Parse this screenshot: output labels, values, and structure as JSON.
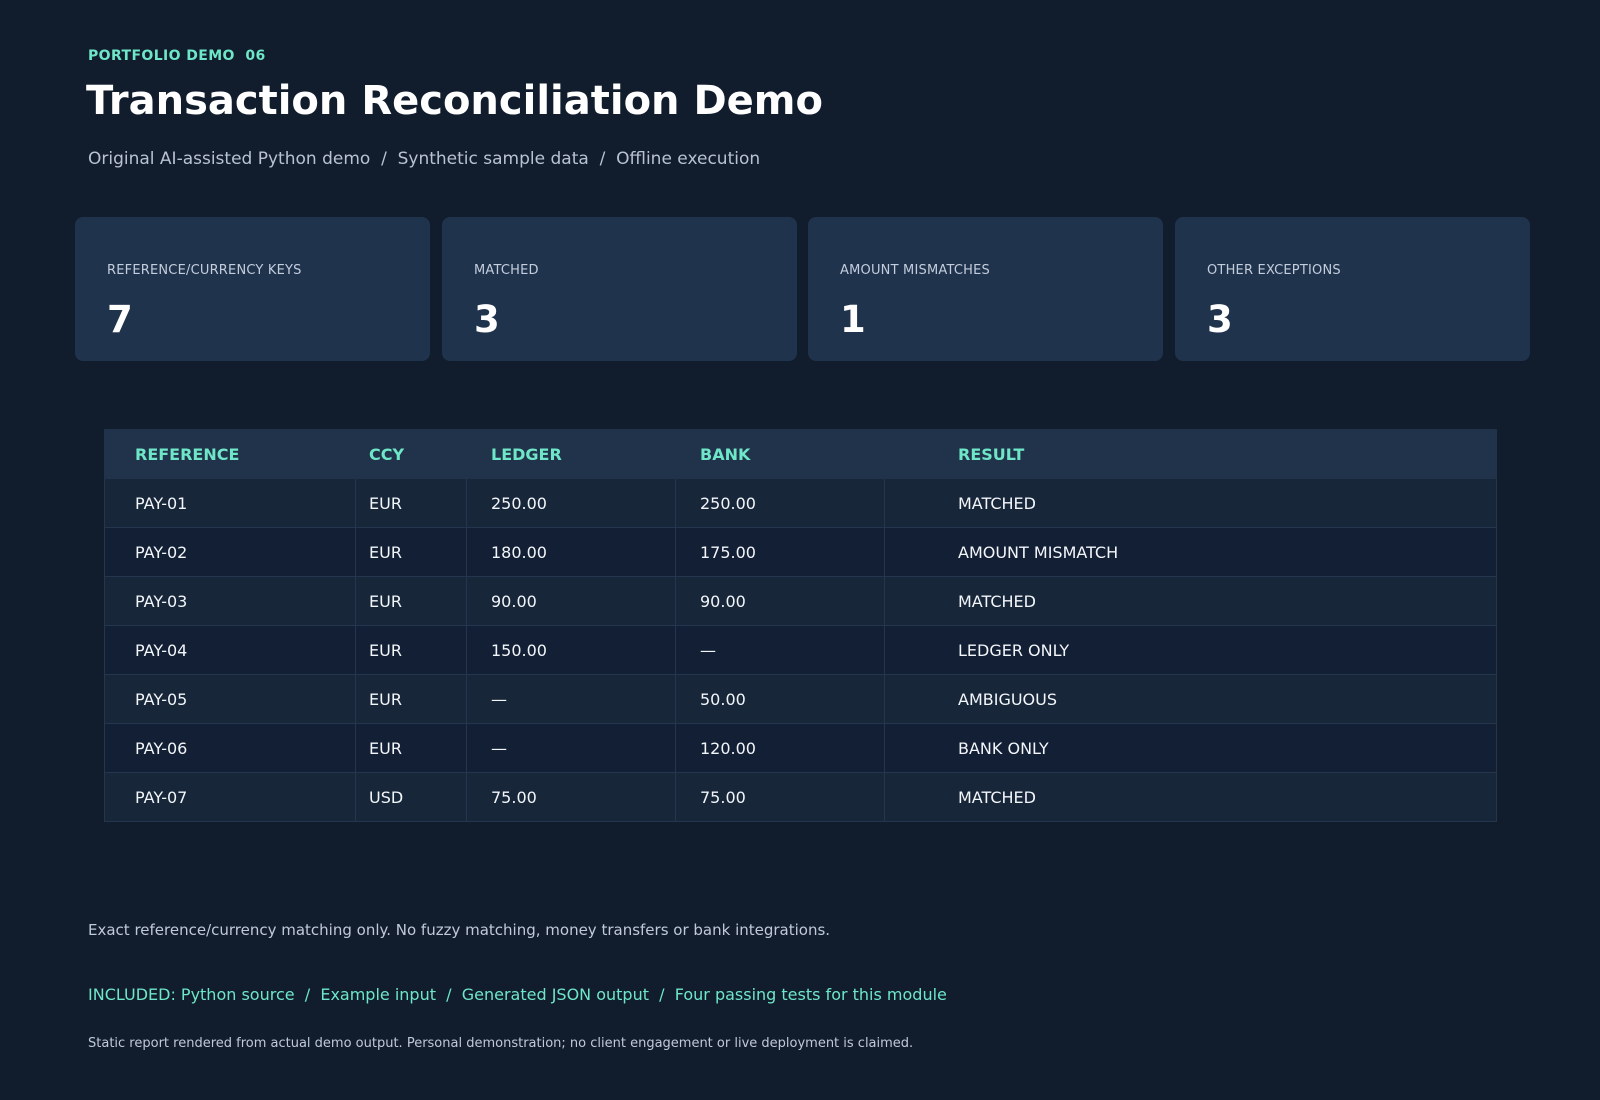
{
  "header": {
    "eyebrow": "PORTFOLIO DEMO  06",
    "title": "Transaction Reconciliation Demo",
    "subtitle": "Original AI-assisted Python demo  /  Synthetic sample data  /  Offline execution"
  },
  "stats": [
    {
      "label": "REFERENCE/CURRENCY KEYS",
      "value": "7"
    },
    {
      "label": "MATCHED",
      "value": "3"
    },
    {
      "label": "AMOUNT MISMATCHES",
      "value": "1"
    },
    {
      "label": "OTHER EXCEPTIONS",
      "value": "3"
    }
  ],
  "table": {
    "headers": [
      "REFERENCE",
      "CCY",
      "LEDGER",
      "BANK",
      "RESULT"
    ],
    "rows": [
      [
        "PAY-01",
        "EUR",
        "250.00",
        "250.00",
        "MATCHED"
      ],
      [
        "PAY-02",
        "EUR",
        "180.00",
        "175.00",
        "AMOUNT MISMATCH"
      ],
      [
        "PAY-03",
        "EUR",
        "90.00",
        "90.00",
        "MATCHED"
      ],
      [
        "PAY-04",
        "EUR",
        "150.00",
        "—",
        "LEDGER ONLY"
      ],
      [
        "PAY-05",
        "EUR",
        "—",
        "50.00",
        "AMBIGUOUS"
      ],
      [
        "PAY-06",
        "EUR",
        "—",
        "120.00",
        "BANK ONLY"
      ],
      [
        "PAY-07",
        "USD",
        "75.00",
        "75.00",
        "MATCHED"
      ]
    ]
  },
  "notes": {
    "scope": "Exact reference/currency matching only. No fuzzy matching, money transfers or bank integrations.",
    "included": "INCLUDED: Python source  /  Example input  /  Generated JSON output  /  Four passing tests for this module",
    "footer": "Static report rendered from actual demo output. Personal demonstration; no client engagement or live deployment is claimed."
  },
  "colors": {
    "background": "#111c2d",
    "card": "#20334d",
    "accent": "#6ee7c8",
    "table_header": "#21334a",
    "row_odd": "#172639",
    "row_even": "#121f34"
  }
}
